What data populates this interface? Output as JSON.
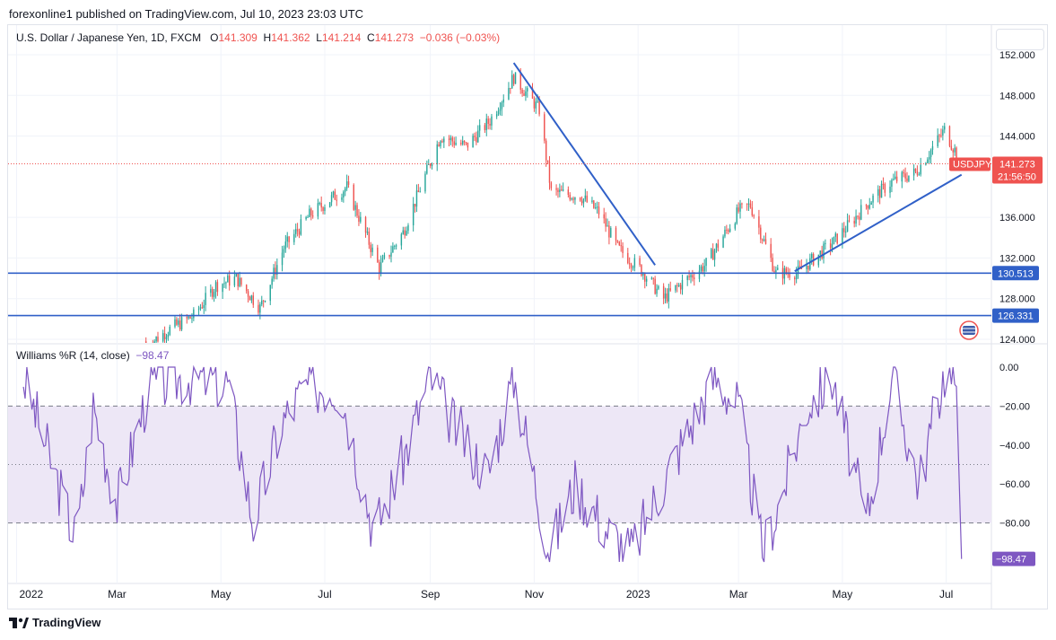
{
  "header": {
    "text": "forexonline1 published on TradingView.com, Jul 10, 2023 23:03 UTC"
  },
  "legend": {
    "symbol": "U.S. Dollar / Japanese Yen, 1D, FXCM",
    "o_label": "O",
    "o": "141.309",
    "h_label": "H",
    "h": "141.362",
    "l_label": "L",
    "l": "141.214",
    "c_label": "C",
    "c": "141.273",
    "change": "−0.036 (−0.03%)"
  },
  "indicator": {
    "name": "Williams %R (14, close)",
    "value": "−98.47"
  },
  "footer": {
    "brand": "TradingView"
  },
  "colors": {
    "up": "#26a69a",
    "down": "#ef5350",
    "trend": "#3060c8",
    "wr": "#7e57c2",
    "band": "#ede7f6"
  },
  "chart_data": [
    {
      "type": "candlestick",
      "title": "U.S. Dollar / Japanese Yen, 1D, FXCM",
      "x_ticks": [
        "2022",
        "Mar",
        "May",
        "Jul",
        "Sep",
        "Nov",
        "2023",
        "Mar",
        "May",
        "Jul"
      ],
      "y_ticks": [
        "152.000",
        "148.000",
        "144.000",
        "136.000",
        "132.000",
        "128.000",
        "124.000"
      ],
      "ylim": [
        123.5,
        153.0
      ],
      "close_series_approx": {
        "x": [
          "2022-04-01",
          "2022-04-15",
          "2022-04-28",
          "2022-05-10",
          "2022-05-24",
          "2022-06-07",
          "2022-06-22",
          "2022-07-14",
          "2022-08-02",
          "2022-08-16",
          "2022-09-07",
          "2022-09-22",
          "2022-10-06",
          "2022-10-20",
          "2022-11-04",
          "2022-11-11",
          "2022-11-28",
          "2022-12-09",
          "2022-12-20",
          "2023-01-03",
          "2023-01-16",
          "2023-01-31",
          "2023-02-10",
          "2023-03-01",
          "2023-03-08",
          "2023-03-23",
          "2023-04-05",
          "2023-04-26",
          "2023-05-17",
          "2023-05-30",
          "2023-06-13",
          "2023-06-30",
          "2023-07-10"
        ],
        "close": [
          125.0,
          126.3,
          129.3,
          130.0,
          127.1,
          133.0,
          136.2,
          139.0,
          131.0,
          134.5,
          144.0,
          143.0,
          145.5,
          149.8,
          146.6,
          138.5,
          138.1,
          136.5,
          133.0,
          130.8,
          128.0,
          130.1,
          131.4,
          136.6,
          137.2,
          130.5,
          130.6,
          133.6,
          137.6,
          139.5,
          140.4,
          144.6,
          141.3
        ]
      },
      "price_labels": [
        {
          "text": "141.273",
          "color": "#ef5350"
        },
        {
          "text": "21:56:50",
          "color": "#ef5350"
        },
        {
          "text": "USDJPY",
          "color": "#ef5350"
        },
        {
          "text": "130.513",
          "color": "#3060c8"
        },
        {
          "text": "126.331",
          "color": "#3060c8"
        }
      ],
      "horizontal_lines": [
        130.513,
        126.331
      ],
      "trendlines": [
        {
          "from": [
            "2022-10-20",
            151.2
          ],
          "to": [
            "2023-01-11",
            131.3
          ]
        },
        {
          "from": [
            "2023-04-03",
            130.7
          ],
          "to": [
            "2023-07-10",
            140.2
          ]
        }
      ],
      "last_price": 141.273
    },
    {
      "type": "line",
      "title": "Williams %R (14, close)",
      "y_ticks": [
        "0.00",
        "−20.00",
        "−40.00",
        "−60.00",
        "−80.00"
      ],
      "ylim": [
        -100,
        0
      ],
      "levels": [
        -20,
        -50,
        -80
      ],
      "last_value_label": "−98.47",
      "series_approx": {
        "x": [
          "2022-01-05",
          "2022-01-20",
          "2022-02-05",
          "2022-02-15",
          "2022-03-01",
          "2022-03-20",
          "2022-04-10",
          "2022-05-05",
          "2022-05-20",
          "2022-06-05",
          "2022-06-20",
          "2022-07-10",
          "2022-07-30",
          "2022-08-15",
          "2022-09-01",
          "2022-09-15",
          "2022-10-05",
          "2022-10-20",
          "2022-11-10",
          "2022-11-25",
          "2022-12-15",
          "2022-12-28",
          "2023-01-15",
          "2023-02-01",
          "2023-02-15",
          "2023-03-01",
          "2023-03-15",
          "2023-03-25",
          "2023-04-10",
          "2023-04-25",
          "2023-05-15",
          "2023-05-30",
          "2023-06-15",
          "2023-06-30",
          "2023-07-07",
          "2023-07-10"
        ],
        "value": [
          -5,
          -45,
          -90,
          -20,
          -70,
          -10,
          -5,
          -8,
          -80,
          -30,
          -10,
          -10,
          -85,
          -50,
          -5,
          -30,
          -55,
          -5,
          -95,
          -60,
          -85,
          -95,
          -60,
          -30,
          -5,
          -20,
          -95,
          -70,
          -20,
          -5,
          -80,
          -5,
          -60,
          -2,
          -10,
          -98.47
        ]
      }
    }
  ]
}
